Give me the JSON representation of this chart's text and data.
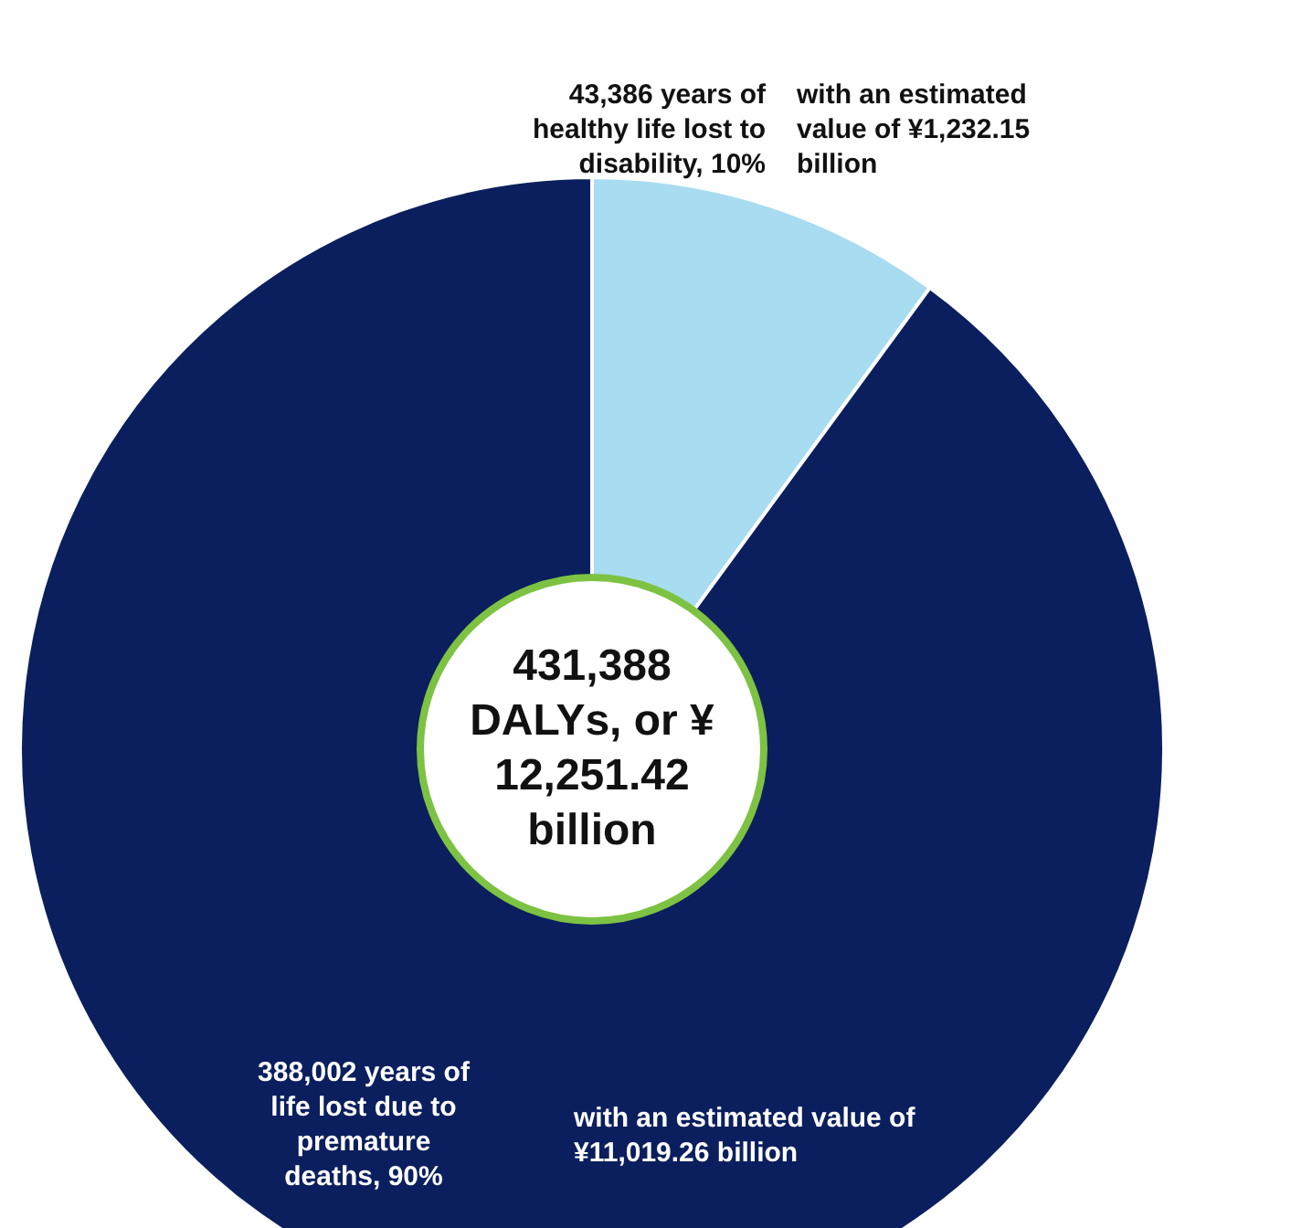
{
  "chart_data": {
    "type": "donut",
    "categories": [
      "43,386 years of healthy life lost to disability, 10%",
      "388,002 years of life lost due to premature deaths, 90%"
    ],
    "values": [
      43386,
      388002
    ],
    "colors": [
      "#a8dcf0",
      "#0b1f5e"
    ],
    "legend": false,
    "annotations": [
      "with an estimated value of ¥1,232.15 billion",
      "with an estimated value of ¥11,019.26 billion",
      "431,388 DALYs, or ¥ 12,251.42 billion"
    ]
  }
}
